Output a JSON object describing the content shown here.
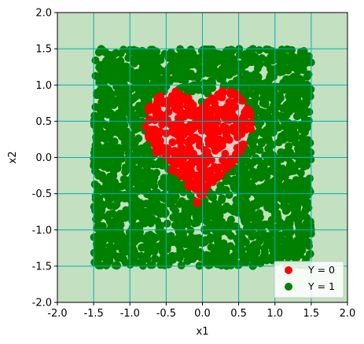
{
  "chart_data": {
    "type": "scatter",
    "title": "",
    "xlabel": "x1",
    "ylabel": "x2",
    "xlim": [
      -2.0,
      2.0
    ],
    "ylim": [
      -2.0,
      2.0
    ],
    "xticks": [
      "-2.0",
      "-1.5",
      "-1.0",
      "-0.5",
      "0.0",
      "0.5",
      "1.0",
      "1.5",
      "2.0"
    ],
    "yticks": [
      "-2.0",
      "-1.5",
      "-1.0",
      "-0.5",
      "0.0",
      "0.5",
      "1.0",
      "1.5",
      "2.0"
    ],
    "grid": true,
    "legend_position": "bottom-right",
    "background_region_color": "#c3e0c0",
    "inner_region_color": "#f0c8c8",
    "grid_color": "#00b3b3",
    "sampling_region": {
      "x_range": [
        -1.5,
        1.5
      ],
      "y_range": [
        -1.5,
        1.5
      ]
    },
    "decision_boundary": "heart-shaped region containing the Y = 0 points",
    "series": [
      {
        "name": "Y = 0",
        "color": "#ff0000",
        "marker": "circle",
        "region": "inside heart"
      },
      {
        "name": "Y = 1",
        "color": "#008000",
        "marker": "circle",
        "region": "square minus heart"
      }
    ]
  }
}
